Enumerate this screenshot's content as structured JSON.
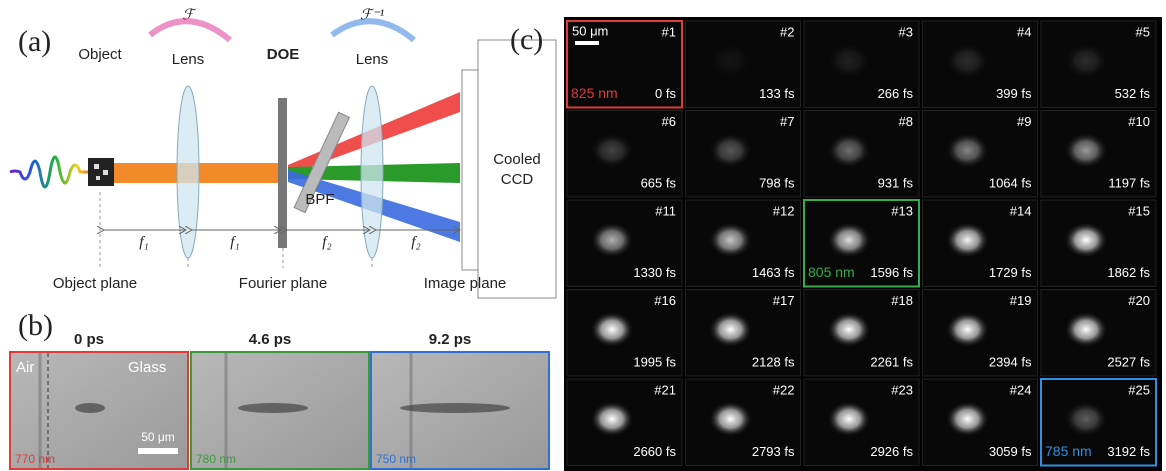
{
  "panel_a": {
    "label": "(a)",
    "object": "Object",
    "lens_1": "Lens",
    "doe": "DOE",
    "lens_2": "Lens",
    "bpf": "BPF",
    "camera": [
      "Cooled",
      "CCD"
    ],
    "transform": "ℱ",
    "inverse_transform": "ℱ⁻¹",
    "distances": [
      "f₁",
      "f₁",
      "f₂",
      "f₂"
    ],
    "planes": [
      "Object plane",
      "Fourier plane",
      "Image plane"
    ]
  },
  "panel_b": {
    "label": "(b)",
    "air": "Air",
    "glass": "Glass",
    "scale_bar": "50 μm",
    "frames": [
      {
        "time": "0 ps",
        "wavelength": "770 nm",
        "color": "#e03a3a"
      },
      {
        "time": "4.6 ps",
        "wavelength": "780 nm",
        "color": "#3a9a3a"
      },
      {
        "time": "9.2 ps",
        "wavelength": "750 nm",
        "color": "#2f6fd0"
      }
    ]
  },
  "panel_c": {
    "label": "(c)",
    "scale_bar": "50 μm",
    "frames": [
      {
        "index": "#1",
        "time": "0 fs",
        "wavelength": "825 nm",
        "color": "#e03a3a"
      },
      {
        "index": "#2",
        "time": "133 fs"
      },
      {
        "index": "#3",
        "time": "266 fs"
      },
      {
        "index": "#4",
        "time": "399 fs"
      },
      {
        "index": "#5",
        "time": "532 fs"
      },
      {
        "index": "#6",
        "time": "665 fs"
      },
      {
        "index": "#7",
        "time": "798 fs"
      },
      {
        "index": "#8",
        "time": "931 fs"
      },
      {
        "index": "#9",
        "time": "1064 fs"
      },
      {
        "index": "#10",
        "time": "1197 fs"
      },
      {
        "index": "#11",
        "time": "1330 fs"
      },
      {
        "index": "#12",
        "time": "1463 fs"
      },
      {
        "index": "#13",
        "time": "1596 fs",
        "wavelength": "805 nm",
        "color": "#3aaa4a"
      },
      {
        "index": "#14",
        "time": "1729 fs"
      },
      {
        "index": "#15",
        "time": "1862 fs"
      },
      {
        "index": "#16",
        "time": "1995 fs"
      },
      {
        "index": "#17",
        "time": "2128 fs"
      },
      {
        "index": "#18",
        "time": "2261 fs"
      },
      {
        "index": "#19",
        "time": "2394 fs"
      },
      {
        "index": "#20",
        "time": "2527 fs"
      },
      {
        "index": "#21",
        "time": "2660 fs"
      },
      {
        "index": "#22",
        "time": "2793 fs"
      },
      {
        "index": "#23",
        "time": "2926 fs"
      },
      {
        "index": "#24",
        "time": "3059 fs"
      },
      {
        "index": "#25",
        "time": "3192 fs",
        "wavelength": "785 nm",
        "color": "#2f8fe0"
      }
    ]
  }
}
